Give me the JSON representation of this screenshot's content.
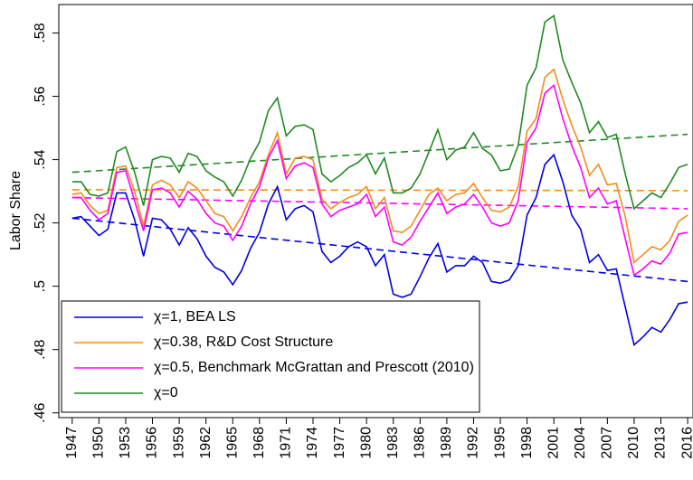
{
  "chart_data": {
    "type": "line",
    "y_label": "Labor Share",
    "x": [
      1947,
      1948,
      1949,
      1950,
      1951,
      1952,
      1953,
      1954,
      1955,
      1956,
      1957,
      1958,
      1959,
      1960,
      1961,
      1962,
      1963,
      1964,
      1965,
      1966,
      1967,
      1968,
      1969,
      1970,
      1971,
      1972,
      1973,
      1974,
      1975,
      1976,
      1977,
      1978,
      1979,
      1980,
      1981,
      1982,
      1983,
      1984,
      1985,
      1986,
      1987,
      1988,
      1989,
      1990,
      1991,
      1992,
      1993,
      1994,
      1995,
      1996,
      1997,
      1998,
      1999,
      2000,
      2001,
      2002,
      2003,
      2004,
      2005,
      2006,
      2007,
      2008,
      2009,
      2010,
      2011,
      2012,
      2013,
      2014,
      2015,
      2016
    ],
    "series": [
      {
        "name": "χ=1, BEA LS",
        "color": "#0000e6",
        "values": [
          0.5215,
          0.522,
          0.519,
          0.516,
          0.518,
          0.5295,
          0.5295,
          0.521,
          0.5095,
          0.5215,
          0.521,
          0.518,
          0.513,
          0.5185,
          0.515,
          0.5095,
          0.506,
          0.5045,
          0.5005,
          0.505,
          0.512,
          0.517,
          0.526,
          0.5315,
          0.521,
          0.5245,
          0.5255,
          0.5235,
          0.511,
          0.5075,
          0.5095,
          0.5125,
          0.514,
          0.5125,
          0.5065,
          0.51,
          0.4975,
          0.4965,
          0.4975,
          0.503,
          0.509,
          0.5135,
          0.5045,
          0.5065,
          0.5065,
          0.5095,
          0.5075,
          0.5015,
          0.501,
          0.502,
          0.5065,
          0.5225,
          0.528,
          0.5385,
          0.5415,
          0.533,
          0.5225,
          0.518,
          0.5075,
          0.51,
          0.505,
          0.5055,
          0.4935,
          0.4815,
          0.484,
          0.487,
          0.4855,
          0.4895,
          0.4945,
          0.495
        ]
      },
      {
        "name": "χ=0.38, R&D Cost Structure",
        "color": "#f28c1e",
        "values": [
          0.529,
          0.5295,
          0.5255,
          0.523,
          0.524,
          0.5375,
          0.538,
          0.53,
          0.519,
          0.532,
          0.5335,
          0.532,
          0.528,
          0.533,
          0.531,
          0.527,
          0.523,
          0.522,
          0.5175,
          0.522,
          0.528,
          0.533,
          0.5415,
          0.5485,
          0.5355,
          0.5405,
          0.541,
          0.54,
          0.5275,
          0.5245,
          0.5265,
          0.528,
          0.529,
          0.5315,
          0.5245,
          0.528,
          0.5175,
          0.517,
          0.519,
          0.524,
          0.529,
          0.531,
          0.527,
          0.529,
          0.5295,
          0.5325,
          0.528,
          0.524,
          0.5235,
          0.525,
          0.5315,
          0.549,
          0.553,
          0.566,
          0.5685,
          0.559,
          0.551,
          0.544,
          0.535,
          0.5385,
          0.532,
          0.5325,
          0.522,
          0.5075,
          0.51,
          0.5125,
          0.5115,
          0.5145,
          0.5205,
          0.5225
        ]
      },
      {
        "name": "χ=0.5, Benchmark McGrattan and Prescott (2010)",
        "color": "#ff00ff",
        "values": [
          0.528,
          0.528,
          0.524,
          0.521,
          0.523,
          0.536,
          0.5365,
          0.527,
          0.5175,
          0.5305,
          0.531,
          0.5295,
          0.525,
          0.53,
          0.5275,
          0.523,
          0.52,
          0.519,
          0.5145,
          0.519,
          0.526,
          0.5315,
          0.5405,
          0.546,
          0.534,
          0.538,
          0.539,
          0.5375,
          0.526,
          0.522,
          0.524,
          0.525,
          0.526,
          0.529,
          0.522,
          0.525,
          0.514,
          0.513,
          0.5155,
          0.5205,
          0.525,
          0.5295,
          0.523,
          0.525,
          0.526,
          0.529,
          0.525,
          0.52,
          0.519,
          0.52,
          0.527,
          0.5455,
          0.55,
          0.561,
          0.5635,
          0.553,
          0.5445,
          0.5375,
          0.528,
          0.531,
          0.526,
          0.527,
          0.515,
          0.5035,
          0.5055,
          0.508,
          0.507,
          0.5105,
          0.5165,
          0.517
        ]
      },
      {
        "name": "χ=0",
        "color": "#218a21",
        "values": [
          0.533,
          0.533,
          0.529,
          0.5285,
          0.5295,
          0.5425,
          0.544,
          0.536,
          0.5255,
          0.54,
          0.541,
          0.5405,
          0.536,
          0.542,
          0.541,
          0.5365,
          0.5345,
          0.533,
          0.5285,
          0.5335,
          0.5405,
          0.5455,
          0.5555,
          0.5595,
          0.5475,
          0.5505,
          0.551,
          0.5495,
          0.5355,
          0.533,
          0.535,
          0.5375,
          0.539,
          0.5415,
          0.5355,
          0.5405,
          0.5295,
          0.5295,
          0.531,
          0.5355,
          0.5425,
          0.5495,
          0.54,
          0.543,
          0.544,
          0.5485,
          0.5435,
          0.5415,
          0.5365,
          0.537,
          0.5445,
          0.5635,
          0.569,
          0.5835,
          0.5855,
          0.5715,
          0.5645,
          0.558,
          0.5485,
          0.552,
          0.547,
          0.548,
          0.5355,
          0.5245,
          0.527,
          0.5295,
          0.528,
          0.5325,
          0.5375,
          0.5385
        ]
      }
    ],
    "trend_lines": [
      {
        "color": "#0000e6",
        "x": [
          1947,
          2016
        ],
        "values": [
          0.5215,
          0.5015
        ]
      },
      {
        "color": "#f28c1e",
        "x": [
          1947,
          2016
        ],
        "values": [
          0.5305,
          0.5302
        ]
      },
      {
        "color": "#ff00ff",
        "x": [
          1947,
          2016
        ],
        "values": [
          0.528,
          0.5245
        ]
      },
      {
        "color": "#218a21",
        "x": [
          1947,
          2016
        ],
        "values": [
          0.536,
          0.548
        ]
      }
    ],
    "xlim": [
      1945.5,
      2016.6
    ],
    "ylim": [
      0.4585,
      0.589
    ],
    "xticks": [
      1947,
      1950,
      1953,
      1956,
      1959,
      1962,
      1965,
      1968,
      1971,
      1974,
      1977,
      1980,
      1983,
      1986,
      1989,
      1992,
      1995,
      1998,
      2001,
      2004,
      2007,
      2010,
      2013,
      2016
    ],
    "yticks": [
      {
        "value": 0.46,
        "label": ".46"
      },
      {
        "value": 0.48,
        "label": ".48"
      },
      {
        "value": 0.5,
        "label": ".5"
      },
      {
        "value": 0.52,
        "label": ".52"
      },
      {
        "value": 0.54,
        "label": ".54"
      },
      {
        "value": 0.56,
        "label": ".56"
      },
      {
        "value": 0.58,
        "label": ".58"
      }
    ],
    "legend": "lower left"
  }
}
